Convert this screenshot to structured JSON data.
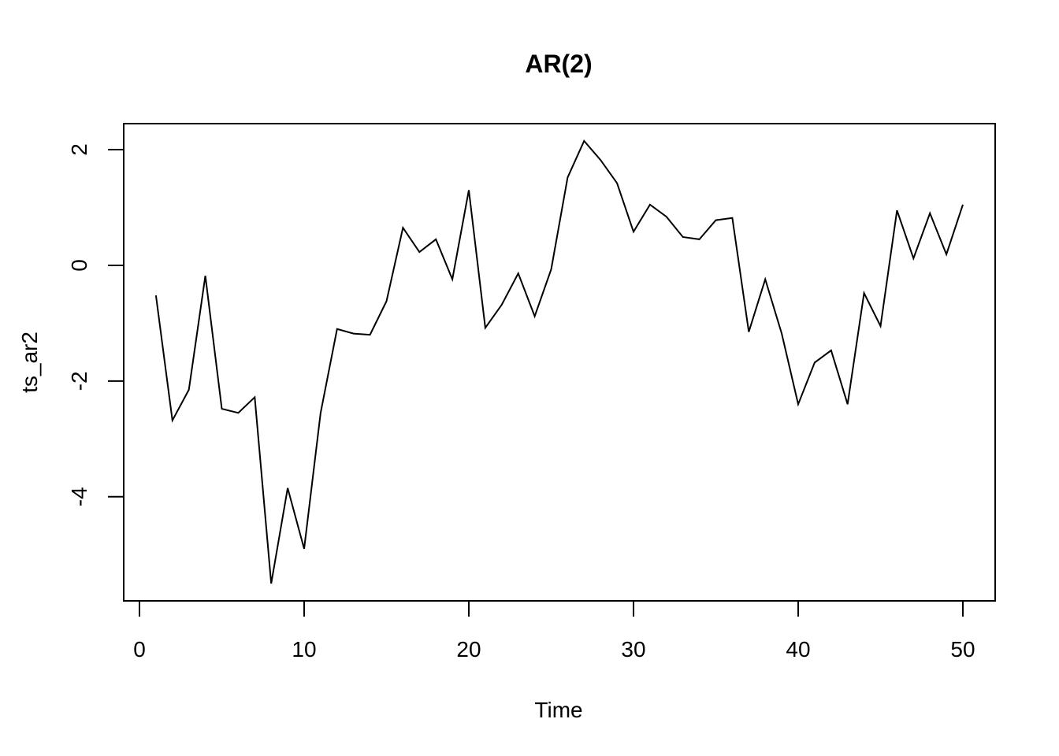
{
  "chart_data": {
    "type": "line",
    "title": "AR(2)",
    "xlabel": "Time",
    "ylabel": "ts_ar2",
    "xlim": [
      0,
      50
    ],
    "ylim": [
      -5.5,
      2.15
    ],
    "x_ticks": [
      0,
      10,
      20,
      30,
      40,
      50
    ],
    "y_ticks": [
      -4,
      -2,
      0,
      2
    ],
    "x_tick_labels": [
      "0",
      "10",
      "20",
      "30",
      "40",
      "50"
    ],
    "y_tick_labels": [
      "-4",
      "-2",
      "0",
      "2"
    ],
    "grid": false,
    "series": [
      {
        "color": "#000000",
        "x": [
          1,
          2,
          3,
          4,
          5,
          6,
          7,
          8,
          9,
          10,
          11,
          12,
          13,
          14,
          15,
          16,
          17,
          18,
          19,
          20,
          21,
          22,
          23,
          24,
          25,
          26,
          27,
          28,
          29,
          30,
          31,
          32,
          33,
          34,
          35,
          36,
          37,
          38,
          39,
          40,
          41,
          42,
          43,
          44,
          45,
          46,
          47,
          48,
          49,
          50
        ],
        "values": [
          -0.52,
          -2.68,
          -2.15,
          -0.18,
          -2.48,
          -2.55,
          -2.28,
          -5.5,
          -3.85,
          -4.9,
          -2.55,
          -1.1,
          -1.18,
          -1.2,
          -0.62,
          0.65,
          0.23,
          0.45,
          -0.24,
          1.3,
          -1.08,
          -0.68,
          -0.14,
          -0.88,
          -0.07,
          1.52,
          2.15,
          1.82,
          1.42,
          0.58,
          1.05,
          0.84,
          0.49,
          0.45,
          0.78,
          0.82,
          -1.15,
          -0.24,
          -1.18,
          -2.4,
          -1.68,
          -1.47,
          -2.4,
          -0.48,
          -1.05,
          0.95,
          0.12,
          0.9,
          0.19,
          1.05
        ]
      }
    ]
  }
}
